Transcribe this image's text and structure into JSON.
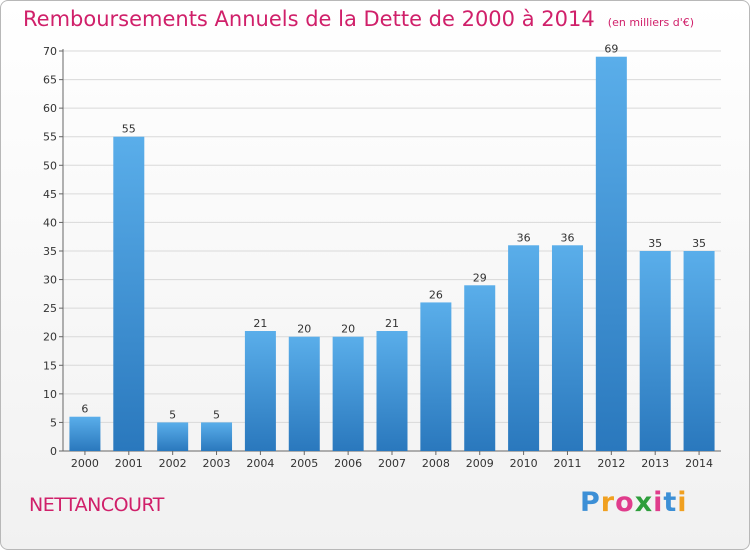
{
  "header": {
    "title": "Remboursements Annuels de la Dette de 2000 à 2014",
    "subtitle": "(en milliers d'€)"
  },
  "footer": {
    "place": "NETTANCOURT",
    "brand_letters": [
      "P",
      "r",
      "o",
      "x",
      "i",
      "t",
      "i"
    ],
    "brand_colors": [
      "#3c8fd6",
      "#f0a020",
      "#e03c8c",
      "#2e9e3c",
      "#e03c8c",
      "#3c8fd6",
      "#f0a020"
    ]
  },
  "chart_data": {
    "type": "bar",
    "title": "Remboursements Annuels de la Dette de 2000 à 2014",
    "unit_label": "(en milliers d'€)",
    "categories": [
      "2000",
      "2001",
      "2002",
      "2003",
      "2004",
      "2005",
      "2006",
      "2007",
      "2008",
      "2009",
      "2010",
      "2011",
      "2012",
      "2013",
      "2014"
    ],
    "values": [
      6,
      55,
      5,
      5,
      21,
      20,
      20,
      21,
      26,
      29,
      36,
      36,
      69,
      35,
      35
    ],
    "ylim": [
      0,
      70
    ],
    "yticks": [
      0,
      5,
      10,
      15,
      20,
      25,
      30,
      35,
      40,
      45,
      50,
      55,
      60,
      65,
      70
    ],
    "grid": true,
    "bar_color_top": "#5aaeea",
    "bar_color_bottom": "#2a78bd",
    "xlabel": "",
    "ylabel": ""
  }
}
